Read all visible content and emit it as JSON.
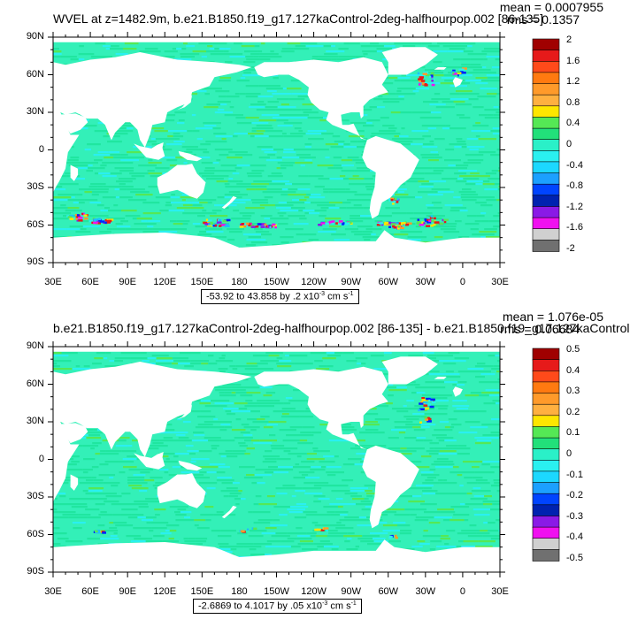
{
  "colors": {
    "land": "#ffffff",
    "ocean_main": "#33f0b8",
    "ocean_alt": "#20e6a0",
    "cyan": "#2af0f0",
    "light_blue": "#1cc0ff",
    "green": "#55e855",
    "yellow": "#ffe600",
    "orange": "#ff9a2a",
    "red": "#e61a1a",
    "blue": "#0022ff",
    "purple": "#8a1ae6",
    "magenta": "#f010f0"
  },
  "colorbar_colors": [
    "#a00000",
    "#e61a1a",
    "#ff4a1a",
    "#ff7a10",
    "#ff9a2a",
    "#ffb040",
    "#ffe600",
    "#55e855",
    "#22e07a",
    "#2af0c8",
    "#2af0f0",
    "#1cd8ff",
    "#1ca0ff",
    "#0044ff",
    "#0022b0",
    "#8a1ae6",
    "#f010f0",
    "#d0d0d0",
    "#707070"
  ],
  "panels": [
    {
      "title": "WVEL at z=1482.9m, b.e21.B1850.f19_g17.127kaControl-2deg-halfhourpop.002 [86-135]",
      "mean": "mean = 0.0007955",
      "rms": "rms = 0.1357",
      "range": "-53.92 to 43.858 by .2 x10",
      "range_exp": "-3",
      "range_unit": " cm s",
      "range_unit_exp": "-1",
      "colorbar_labels": [
        "2",
        "1.6",
        "1.2",
        "0.8",
        "0.4",
        "0",
        "-0.4",
        "-0.8",
        "-1.2",
        "-1.6",
        "-2"
      ]
    },
    {
      "title": "b.e21.B1850.f19_g17.127kaControl-2deg-halfhourpop.002 [86-135] - b.e21.B1850.f19_g17.127kaControl",
      "mean": "mean = 1.076e-05",
      "rms": "rms = 0.06684",
      "range": "-2.6869 to 4.1017 by .05 x10",
      "range_exp": "-3",
      "range_unit": " cm s",
      "range_unit_exp": "-1",
      "colorbar_labels": [
        "0.5",
        "0.4",
        "0.3",
        "0.2",
        "0.1",
        "0",
        "-0.1",
        "-0.2",
        "-0.3",
        "-0.4",
        "-0.5"
      ]
    }
  ],
  "lat_labels": [
    "90N",
    "60N",
    "30N",
    "0",
    "30S",
    "60S",
    "90S"
  ],
  "lon_labels": [
    "30E",
    "60E",
    "90E",
    "120E",
    "150E",
    "180",
    "150W",
    "120W",
    "90W",
    "60W",
    "30W",
    "0",
    "30E"
  ]
}
